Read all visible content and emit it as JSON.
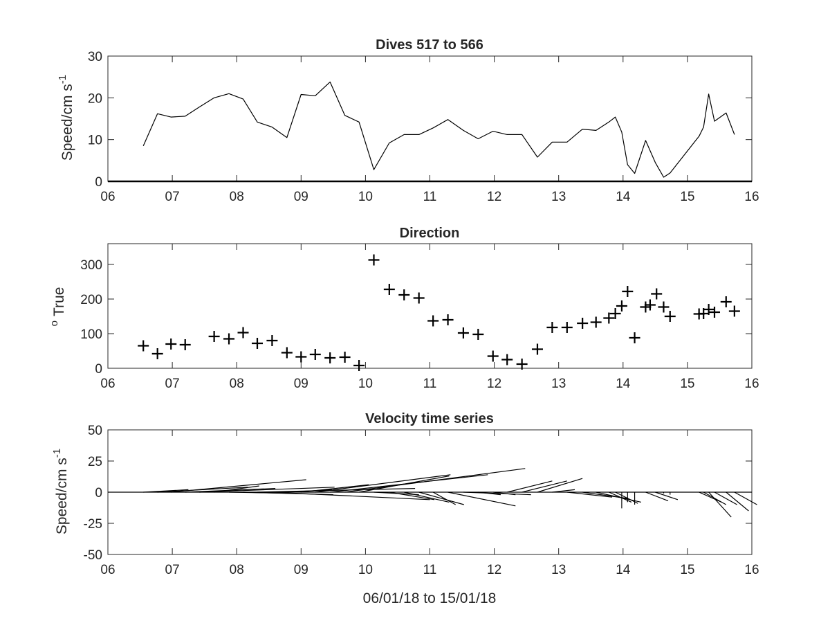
{
  "figure_xlabel": "06/01/18 to 15/01/18",
  "colors": {
    "ink": "#000000",
    "axis": "#262626",
    "background": "#ffffff"
  },
  "chart_data": [
    {
      "type": "line",
      "title": "Dives 517 to 566",
      "ylabel_base": "Speed/cm s",
      "ylabel_sup": "-1",
      "xlim": [
        6,
        16
      ],
      "ylim": [
        0,
        30
      ],
      "x_ticks": [
        6,
        7,
        8,
        9,
        10,
        11,
        12,
        13,
        14,
        15,
        16
      ],
      "x_tick_labels": [
        "06",
        "07",
        "08",
        "09",
        "10",
        "11",
        "12",
        "13",
        "14",
        "15",
        "16"
      ],
      "y_ticks": [
        0,
        10,
        20,
        30
      ],
      "y_tick_labels": [
        "0",
        "10",
        "20",
        "30"
      ],
      "x": [
        6.55,
        6.77,
        6.98,
        7.2,
        7.42,
        7.65,
        7.88,
        8.1,
        8.32,
        8.55,
        8.78,
        9.0,
        9.22,
        9.45,
        9.68,
        9.9,
        10.13,
        10.37,
        10.6,
        10.83,
        11.05,
        11.28,
        11.52,
        11.75,
        11.98,
        12.2,
        12.43,
        12.67,
        12.9,
        13.13,
        13.37,
        13.58,
        13.78,
        13.88,
        13.98,
        14.07,
        14.18,
        14.35,
        14.5,
        14.63,
        14.73,
        15.18,
        15.25,
        15.33,
        15.42,
        15.6,
        15.73
      ],
      "y": [
        8.5,
        16.2,
        15.4,
        15.6,
        17.8,
        20.0,
        21.0,
        19.7,
        14.2,
        13.0,
        10.5,
        20.8,
        20.5,
        23.8,
        15.8,
        14.2,
        2.8,
        9.2,
        11.2,
        11.2,
        12.8,
        14.8,
        12.2,
        10.2,
        12.0,
        11.2,
        11.2,
        5.8,
        9.4,
        9.4,
        12.5,
        12.2,
        14.2,
        15.4,
        11.8,
        4.0,
        1.9,
        9.8,
        4.5,
        1.0,
        2.0,
        10.8,
        13.0,
        20.9,
        14.4,
        16.4,
        11.2
      ]
    },
    {
      "type": "scatter",
      "title": "Direction",
      "ylabel_base": "True",
      "ylabel_sup": "o",
      "xlim": [
        6,
        16
      ],
      "ylim": [
        0,
        360
      ],
      "marker": "+",
      "x_ticks": [
        6,
        7,
        8,
        9,
        10,
        11,
        12,
        13,
        14,
        15,
        16
      ],
      "x_tick_labels": [
        "06",
        "07",
        "08",
        "09",
        "10",
        "11",
        "12",
        "13",
        "14",
        "15",
        "16"
      ],
      "y_ticks": [
        0,
        100,
        200,
        300
      ],
      "y_tick_labels": [
        "0",
        "100",
        "200",
        "300"
      ],
      "x": [
        6.55,
        6.77,
        6.98,
        7.2,
        7.65,
        7.88,
        8.1,
        8.32,
        8.55,
        8.78,
        9.0,
        9.22,
        9.45,
        9.68,
        9.9,
        10.13,
        10.37,
        10.6,
        10.83,
        11.05,
        11.28,
        11.52,
        11.75,
        11.98,
        12.2,
        12.43,
        12.67,
        12.9,
        13.13,
        13.37,
        13.58,
        13.78,
        13.88,
        13.98,
        14.07,
        14.18,
        14.35,
        14.42,
        14.52,
        14.63,
        14.73,
        15.18,
        15.25,
        15.33,
        15.42,
        15.6,
        15.73
      ],
      "y": [
        65,
        42,
        70,
        68,
        92,
        85,
        103,
        72,
        80,
        45,
        33,
        40,
        30,
        32,
        8,
        313,
        228,
        212,
        203,
        137,
        140,
        102,
        98,
        35,
        25,
        12,
        55,
        118,
        118,
        130,
        133,
        145,
        158,
        180,
        222,
        88,
        177,
        183,
        215,
        177,
        150,
        157,
        158,
        170,
        162,
        192,
        165
      ]
    },
    {
      "type": "stick",
      "title": "Velocity time series",
      "ylabel_base": "Speed/cm s",
      "ylabel_sup": "-1",
      "xlim": [
        6,
        16
      ],
      "ylim": [
        -50,
        50
      ],
      "x_ticks": [
        6,
        7,
        8,
        9,
        10,
        11,
        12,
        13,
        14,
        15,
        16
      ],
      "x_tick_labels": [
        "06",
        "07",
        "08",
        "09",
        "10",
        "11",
        "12",
        "13",
        "14",
        "15",
        "16"
      ],
      "y_ticks": [
        -50,
        -25,
        0,
        25,
        50
      ],
      "y_tick_labels": [
        "-50",
        "-25",
        "0",
        "25",
        "50"
      ],
      "x": [
        6.55,
        6.77,
        6.98,
        7.2,
        7.42,
        7.65,
        7.88,
        8.1,
        8.32,
        8.55,
        8.78,
        9.0,
        9.22,
        9.45,
        9.68,
        9.9,
        10.13,
        10.37,
        10.6,
        10.83,
        11.05,
        11.28,
        11.52,
        11.75,
        11.98,
        12.2,
        12.43,
        12.67,
        12.9,
        13.13,
        13.37,
        13.58,
        13.78,
        13.88,
        13.98,
        14.07,
        14.18,
        14.35,
        14.5,
        14.63,
        14.73,
        15.18,
        15.25,
        15.33,
        15.42,
        15.6,
        15.73
      ],
      "u": [
        2,
        4,
        6,
        4,
        6,
        2,
        3,
        4,
        7,
        7,
        2,
        3,
        6,
        7,
        8,
        4,
        2,
        2,
        2,
        2,
        1,
        3,
        3,
        1,
        1,
        2,
        2,
        2,
        1,
        2,
        2,
        2,
        1,
        1,
        0,
        0,
        0,
        1,
        1,
        0,
        0,
        1,
        1,
        1,
        1,
        1,
        1
      ],
      "v": [
        2,
        4,
        10,
        3,
        4,
        5,
        -1,
        -2,
        3,
        -6,
        2,
        6,
        14,
        14,
        19,
        13,
        -2,
        -6,
        -8,
        -10,
        -10,
        -11,
        -2,
        -2,
        -2,
        9,
        9,
        11,
        2,
        -4,
        -5,
        -8,
        -8,
        -9,
        -13,
        -8,
        -10,
        -7,
        -6,
        -1,
        -2,
        -8,
        -10,
        -20,
        -10,
        -15,
        -10
      ]
    }
  ]
}
